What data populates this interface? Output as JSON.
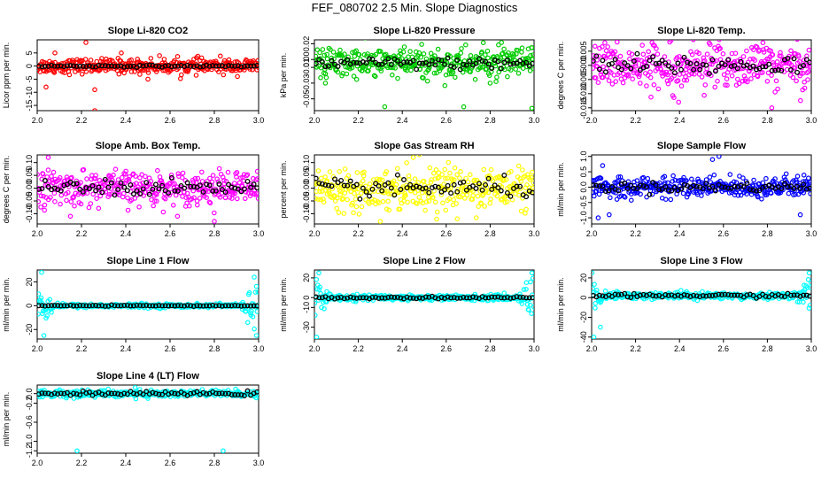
{
  "main_title": "FEF_080702  2.5 Min. Slope Diagnostics",
  "chart_data": [
    {
      "type": "scatter",
      "title": "Slope Li-820 CO2",
      "ylabel": "Licor ppm per min.",
      "xlim": [
        2.0,
        3.0
      ],
      "ylim": [
        -17,
        10
      ],
      "yticks": [
        5,
        0,
        -5,
        -10,
        -15
      ],
      "xticks": [
        "2.0",
        "2.2",
        "2.4",
        "2.6",
        "2.8",
        "3.0"
      ],
      "point_color": "#ff0000",
      "center": 0,
      "spread": 2.5,
      "mean_spread": 0.3,
      "outliers": [
        [
          2.04,
          -8
        ],
        [
          2.08,
          5
        ],
        [
          2.22,
          9
        ],
        [
          2.26,
          -9
        ],
        [
          2.26,
          -17
        ],
        [
          2.38,
          5
        ],
        [
          2.5,
          -5
        ]
      ]
    },
    {
      "type": "scatter",
      "title": "Slope Li-820 Pressure",
      "ylabel": "kPa per min.",
      "xlim": [
        2.0,
        3.0
      ],
      "ylim": [
        -0.065,
        0.025
      ],
      "yticks": [
        "0.02",
        "0.00",
        "-0.01",
        "-0.03",
        "-0.05"
      ],
      "ytick_vals": [
        0.02,
        0.0,
        -0.01,
        -0.03,
        -0.05
      ],
      "xticks": [
        "2.0",
        "2.2",
        "2.4",
        "2.6",
        "2.8",
        "3.0"
      ],
      "point_color": "#00cc00",
      "center": -0.005,
      "spread": 0.018,
      "mean_spread": 0.006,
      "outliers": [
        [
          2.32,
          -0.06
        ],
        [
          2.68,
          -0.06
        ],
        [
          2.99,
          -0.062
        ],
        [
          2.99,
          0.015
        ],
        [
          2.05,
          -0.03
        ],
        [
          2.8,
          -0.03
        ]
      ]
    },
    {
      "type": "scatter",
      "title": "Slope Li-820 Temp.",
      "ylabel": "degrees C per min.",
      "xlim": [
        2.0,
        3.0
      ],
      "ylim": [
        -0.016,
        0.009
      ],
      "yticks": [
        "0.005",
        "0.000",
        "-0.005",
        "-0.010",
        "-0.015"
      ],
      "ytick_vals": [
        0.005,
        0.0,
        -0.005,
        -0.01,
        -0.015
      ],
      "xticks": [
        "2.0",
        "2.2",
        "2.4",
        "2.6",
        "2.8",
        "3.0"
      ],
      "point_color": "#ff00ff",
      "center": 0.0,
      "spread": 0.007,
      "mean_spread": 0.003,
      "outliers": [
        [
          2.06,
          0.008
        ],
        [
          2.82,
          -0.015
        ],
        [
          2.78,
          0.008
        ]
      ]
    },
    {
      "type": "scatter",
      "title": "Slope Amb. Box Temp.",
      "ylabel": "degrees C per min.",
      "xlim": [
        2.0,
        3.0
      ],
      "ylim": [
        -0.14,
        0.13
      ],
      "yticks": [
        "0.10",
        "0.05",
        "0.00",
        "-0.05",
        "-0.10"
      ],
      "ytick_vals": [
        0.1,
        0.05,
        0.0,
        -0.05,
        -0.1
      ],
      "xticks": [
        "2.0",
        "2.2",
        "2.4",
        "2.6",
        "2.8",
        "3.0"
      ],
      "point_color": "#ff00ff",
      "center": 0.0,
      "spread": 0.06,
      "mean_spread": 0.025,
      "outliers": [
        [
          2.05,
          0.12
        ],
        [
          2.8,
          -0.13
        ],
        [
          2.15,
          -0.11
        ]
      ]
    },
    {
      "type": "scatter",
      "title": "Slope Gas Stream RH",
      "ylabel": "percent per min.",
      "xlim": [
        2.0,
        3.0
      ],
      "ylim": [
        -0.14,
        0.13
      ],
      "yticks": [
        "0.10",
        "0.05",
        "0.00",
        "-0.05",
        "-0.10"
      ],
      "ytick_vals": [
        0.1,
        0.05,
        0.0,
        -0.05,
        -0.1
      ],
      "xticks": [
        "2.0",
        "2.2",
        "2.4",
        "2.6",
        "2.8",
        "3.0"
      ],
      "point_color": "#ffff00",
      "center": 0.0,
      "spread": 0.07,
      "mean_spread": 0.03,
      "outliers": [
        [
          2.45,
          0.12
        ],
        [
          2.3,
          -0.13
        ],
        [
          2.65,
          -0.12
        ]
      ]
    },
    {
      "type": "scatter",
      "title": "Slope Sample Flow",
      "ylabel": "ml/min per min.",
      "xlim": [
        2.0,
        3.0
      ],
      "ylim": [
        -1.2,
        1.05
      ],
      "yticks": [
        "1.0",
        "0.5",
        "0.0",
        "-0.5",
        "-1.0"
      ],
      "ytick_vals": [
        1.0,
        0.5,
        0.0,
        -0.5,
        -1.0
      ],
      "xticks": [
        "2.0",
        "2.2",
        "2.4",
        "2.6",
        "2.8",
        "3.0"
      ],
      "point_color": "#0000ff",
      "center": 0.0,
      "spread": 0.3,
      "mean_spread": 0.12,
      "outliers": [
        [
          2.05,
          0.7
        ],
        [
          2.03,
          -1.0
        ],
        [
          2.08,
          -0.9
        ],
        [
          2.55,
          0.9
        ],
        [
          2.58,
          1.0
        ],
        [
          2.95,
          -0.9
        ]
      ]
    },
    {
      "type": "scatter",
      "title": "Slope Line 1 Flow",
      "ylabel": "ml/min per min.",
      "xlim": [
        2.0,
        3.0
      ],
      "ylim": [
        -28,
        30
      ],
      "yticks": [
        "20",
        "0",
        "-20"
      ],
      "ytick_vals": [
        20,
        0,
        -20
      ],
      "xticks": [
        "2.0",
        "2.2",
        "2.4",
        "2.6",
        "2.8",
        "3.0"
      ],
      "point_color": "#00ffff",
      "center": 0,
      "spread": 1.5,
      "mean_spread": 0.3,
      "edge_spread": 20,
      "outliers": [
        [
          2.02,
          28
        ],
        [
          2.03,
          -25
        ],
        [
          2.98,
          24
        ],
        [
          2.99,
          -25
        ]
      ]
    },
    {
      "type": "scatter",
      "title": "Slope Line 2 Flow",
      "ylabel": "ml/min per min.",
      "xlim": [
        2.0,
        3.0
      ],
      "ylim": [
        -42,
        28
      ],
      "yticks": [
        "20",
        "0",
        "-10",
        "-30"
      ],
      "ytick_vals": [
        20,
        0,
        -10,
        -30
      ],
      "xticks": [
        "2.0",
        "2.2",
        "2.4",
        "2.6",
        "2.8",
        "3.0"
      ],
      "point_color": "#00ffff",
      "center": 0,
      "spread": 2.5,
      "mean_spread": 1,
      "edge_spread": 18,
      "outliers": [
        [
          2.01,
          -40
        ],
        [
          2.02,
          25
        ],
        [
          2.99,
          25
        ]
      ]
    },
    {
      "type": "scatter",
      "title": "Slope Line 3 Flow",
      "ylabel": "ml/min per min.",
      "xlim": [
        2.0,
        3.0
      ],
      "ylim": [
        -42,
        28
      ],
      "yticks": [
        "20",
        "0",
        "-20",
        "-40"
      ],
      "ytick_vals": [
        20,
        0,
        -20,
        -40
      ],
      "xticks": [
        "2.0",
        "2.2",
        "2.4",
        "2.6",
        "2.8",
        "3.0"
      ],
      "point_color": "#00ffff",
      "center": 2,
      "spread": 3,
      "mean_spread": 1.5,
      "edge_spread": 15,
      "outliers": [
        [
          2.01,
          -40
        ],
        [
          2.04,
          -30
        ],
        [
          2.99,
          25
        ]
      ]
    },
    {
      "type": "scatter",
      "title": "Slope Line 4 (LT) Flow",
      "ylabel": "ml/min per min.",
      "xlim": [
        2.0,
        3.0
      ],
      "ylim": [
        -1.25,
        0.18
      ],
      "yticks": [
        "0.0",
        "-0.2",
        "-0.6",
        "-1.0",
        "-1.2"
      ],
      "ytick_vals": [
        0.0,
        -0.2,
        -0.6,
        -1.0,
        -1.2
      ],
      "xticks": [
        "2.0",
        "2.2",
        "2.4",
        "2.6",
        "2.8",
        "3.0"
      ],
      "point_color": "#00ffff",
      "center": 0.0,
      "spread": 0.07,
      "mean_spread": 0.03,
      "outliers": [
        [
          2.18,
          -1.2
        ],
        [
          2.84,
          -1.2
        ],
        [
          2.5,
          -0.1
        ]
      ]
    }
  ]
}
